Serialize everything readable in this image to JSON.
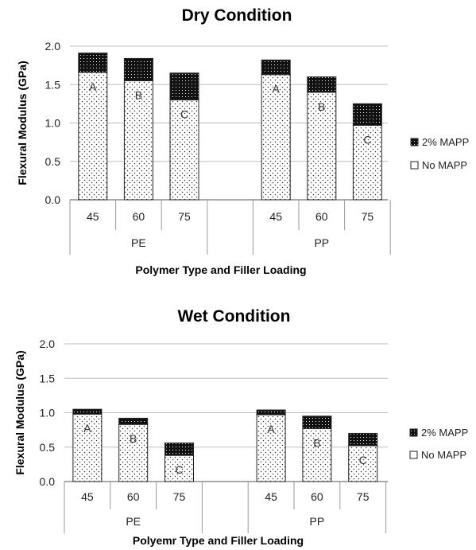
{
  "chart_data": [
    {
      "type": "bar",
      "stacked": true,
      "title": "Dry Condition",
      "xlabel": "Polymer Type and Filler Loading",
      "ylabel": "Flexural Modulus (GPa)",
      "ylim": [
        0,
        2.0
      ],
      "yticks": [
        "0.0",
        "0.5",
        "1.0",
        "1.5",
        "2.0"
      ],
      "groups": [
        {
          "name": "PE",
          "categories": [
            "45",
            "60",
            "75"
          ]
        },
        {
          "name": "PP",
          "categories": [
            "45",
            "60",
            "75"
          ]
        }
      ],
      "series": [
        {
          "name": "No MAPP",
          "values": [
            1.66,
            1.55,
            1.3,
            1.63,
            1.4,
            0.97
          ]
        },
        {
          "name": "2% MAPP",
          "values": [
            0.25,
            0.29,
            0.35,
            0.19,
            0.2,
            0.28
          ]
        }
      ],
      "bar_labels": [
        "A",
        "B",
        "C",
        "A",
        "B",
        "C"
      ],
      "legend": [
        "2% MAPP",
        "No MAPP"
      ],
      "legend_position": "right",
      "grid": true
    },
    {
      "type": "bar",
      "stacked": true,
      "title": "Wet Condition",
      "xlabel": "Polyemr Type and Filler Loading",
      "ylabel": "Flexural Modulus (GPa)",
      "ylim": [
        0,
        2.0
      ],
      "yticks": [
        "0.0",
        "0.5",
        "1.0",
        "1.5",
        "2.0"
      ],
      "groups": [
        {
          "name": "PE",
          "categories": [
            "45",
            "60",
            "75"
          ]
        },
        {
          "name": "PP",
          "categories": [
            "45",
            "60",
            "75"
          ]
        }
      ],
      "series": [
        {
          "name": "No MAPP",
          "values": [
            0.98,
            0.83,
            0.38,
            0.97,
            0.77,
            0.52
          ]
        },
        {
          "name": "2% MAPP",
          "values": [
            0.07,
            0.09,
            0.18,
            0.07,
            0.18,
            0.18
          ]
        }
      ],
      "bar_labels": [
        "A",
        "B",
        "C",
        "A",
        "B",
        "C"
      ],
      "legend": [
        "2% MAPP",
        "No MAPP"
      ],
      "legend_position": "right",
      "grid": true
    }
  ]
}
